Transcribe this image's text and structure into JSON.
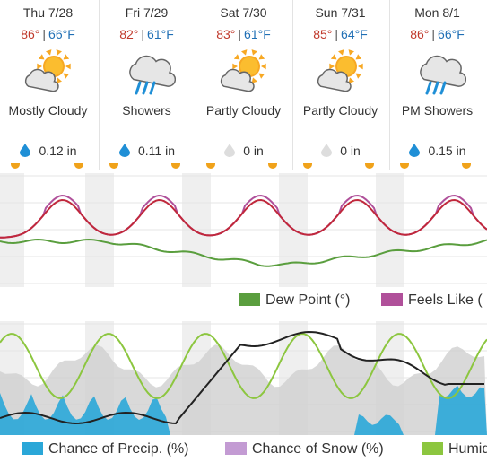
{
  "days": [
    {
      "date": "Thu 7/28",
      "high": "86°",
      "low": "66°F",
      "condition": "Mostly Cloudy",
      "icon": "partly-cloudy-icon",
      "precip": "0.12 in",
      "drop_color": "#1f8fd6"
    },
    {
      "date": "Fri 7/29",
      "high": "82°",
      "low": "61°F",
      "condition": "Showers",
      "icon": "showers-icon",
      "precip": "0.11 in",
      "drop_color": "#1f8fd6"
    },
    {
      "date": "Sat 7/30",
      "high": "83°",
      "low": "61°F",
      "condition": "Partly Cloudy",
      "icon": "partly-cloudy-icon",
      "precip": "0 in",
      "drop_color": "#dddddd"
    },
    {
      "date": "Sun 7/31",
      "high": "85°",
      "low": "64°F",
      "condition": "Partly Cloudy",
      "icon": "partly-cloudy-icon",
      "precip": "0 in",
      "drop_color": "#dddddd"
    },
    {
      "date": "Mon 8/1",
      "high": "86°",
      "low": "66°F",
      "condition": "PM Showers",
      "icon": "showers-icon",
      "precip": "0.15 in",
      "drop_color": "#1f8fd6"
    }
  ],
  "temp_sep": "|",
  "legend1": [
    {
      "label": "Dew Point (°)",
      "color": "#5a9e3e"
    },
    {
      "label": "Feels Like (",
      "color": "#b0509a"
    }
  ],
  "legend2": [
    {
      "label": "Chance of Precip. (%)",
      "color": "#2aa7d8"
    },
    {
      "label": "Chance of Snow (%)",
      "color": "#c39bd3"
    },
    {
      "label": "Humid",
      "color": "#8cc63f"
    }
  ],
  "colors": {
    "temp": "#c0283c",
    "feels": "#b0509a",
    "dew": "#5a9e3e",
    "precip": "#2aa7d8",
    "humidity": "#8cc63f",
    "cloud_line": "#222222",
    "cloud_area": "#cfcfcf",
    "night_band": "#efefef"
  }
}
